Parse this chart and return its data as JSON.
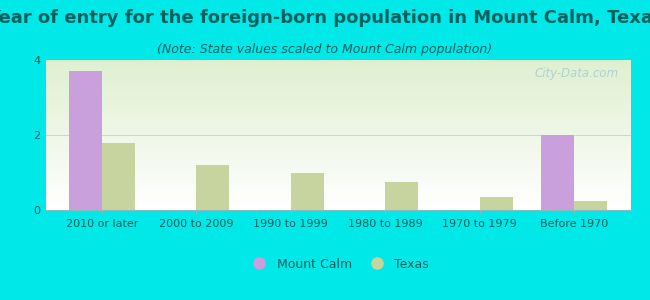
{
  "title": "Year of entry for the foreign-born population in Mount Calm, Texas",
  "subtitle": "(Note: State values scaled to Mount Calm population)",
  "categories": [
    "2010 or later",
    "2000 to 2009",
    "1990 to 1999",
    "1980 to 1989",
    "1970 to 1979",
    "Before 1970"
  ],
  "mount_calm_values": [
    3.7,
    0,
    0,
    0,
    0,
    2.0
  ],
  "texas_values": [
    1.8,
    1.2,
    1.0,
    0.75,
    0.35,
    0.25
  ],
  "mount_calm_color": "#c9a0dc",
  "texas_color": "#c8d4a0",
  "background_color": "#00e8e8",
  "plot_bg_colors": [
    "#e8f5e0",
    "#f5fff5",
    "#ffffff"
  ],
  "ylim": [
    0,
    4
  ],
  "yticks": [
    0,
    2,
    4
  ],
  "bar_width": 0.35,
  "title_color": "#006060",
  "subtitle_color": "#006060",
  "tick_color": "#006060",
  "title_fontsize": 13,
  "subtitle_fontsize": 9,
  "tick_fontsize": 8,
  "legend_fontsize": 9,
  "watermark_text": "City-Data.com"
}
